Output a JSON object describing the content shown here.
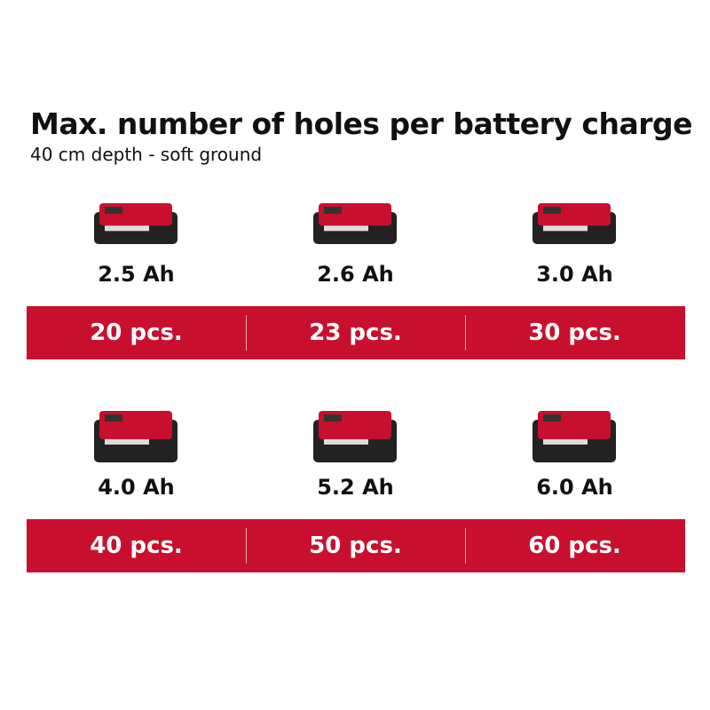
{
  "header": {
    "title": "Max. number of holes per battery charge",
    "subtitle": "40 cm depth - soft ground"
  },
  "rows": [
    {
      "batteries": [
        {
          "capacity": "2.5 Ah",
          "holes": "20 pcs."
        },
        {
          "capacity": "2.6 Ah",
          "holes": "23 pcs."
        },
        {
          "capacity": "3.0 Ah",
          "holes": "30 pcs."
        }
      ]
    },
    {
      "batteries": [
        {
          "capacity": "4.0 Ah",
          "holes": "40 pcs."
        },
        {
          "capacity": "5.2 Ah",
          "holes": "50 pcs."
        },
        {
          "capacity": "6.0 Ah",
          "holes": "60 pcs."
        }
      ]
    }
  ]
}
